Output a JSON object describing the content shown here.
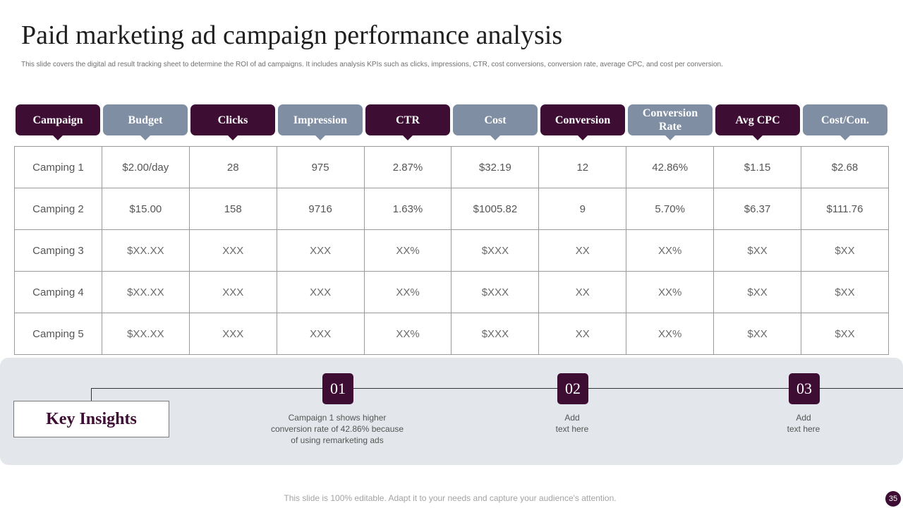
{
  "slide": {
    "title": "Paid marketing ad campaign performance analysis",
    "subtitle": "This slide covers the digital ad result tracking sheet to determine the ROI  of ad campaigns. It includes analysis KPIs  such as clicks, impressions, CTR,  cost conversions, conversion rate, average CPC,  and cost per conversion.",
    "footer": "This slide is 100% editable. Adapt it to your needs and capture your audience's attention.",
    "page_number": "35"
  },
  "colors": {
    "dark": "#3d0d33",
    "light": "#7f8ea3",
    "band": "#e3e6ea"
  },
  "table": {
    "headers": [
      "Campaign",
      "Budget",
      "Clicks",
      "Impression",
      "CTR",
      "Cost",
      "Conversion",
      "Conversion Rate",
      "Avg CPC",
      "Cost/Con."
    ],
    "rows": [
      [
        "Camping 1",
        "$2.00/day",
        "28",
        "975",
        "2.87%",
        "$32.19",
        "12",
        "42.86%",
        "$1.15",
        "$2.68"
      ],
      [
        "Camping 2",
        "$15.00",
        "158",
        "9716",
        "1.63%",
        "$1005.82",
        "9",
        "5.70%",
        "$6.37",
        "$111.76"
      ],
      [
        "Camping 3",
        "$XX.XX",
        "XXX",
        "XXX",
        "XX%",
        "$XXX",
        "XX",
        "XX%",
        "$XX",
        "$XX"
      ],
      [
        "Camping 4",
        "$XX.XX",
        "XXX",
        "XXX",
        "XX%",
        "$XXX",
        "XX",
        "XX%",
        "$XX",
        "$XX"
      ],
      [
        "Camping 5",
        "$XX.XX",
        "XXX",
        "XXX",
        "XX%",
        "$XXX",
        "XX",
        "XX%",
        "$XX",
        "$XX"
      ]
    ]
  },
  "insights": {
    "label": "Key Insights",
    "items": [
      {
        "number": "01",
        "text": "Campaign  1 shows higher\nconversion  rate of 42.86% because\nof using remarketing ads"
      },
      {
        "number": "02",
        "text": "Add\ntext here"
      },
      {
        "number": "03",
        "text": "Add\ntext here"
      }
    ]
  }
}
